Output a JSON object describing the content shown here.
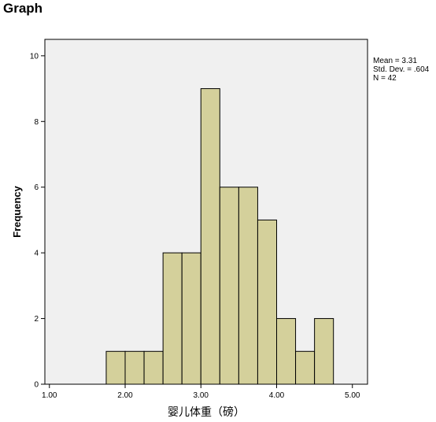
{
  "heading": "Graph",
  "chart_data": {
    "type": "bar",
    "subtype": "histogram",
    "title": "",
    "xlabel": "婴儿体重（磅）",
    "ylabel": "Frequency",
    "xlim": [
      0.94,
      5.2
    ],
    "ylim": [
      0,
      10.5
    ],
    "x_ticks": [
      1.0,
      2.0,
      3.0,
      4.0,
      5.0
    ],
    "x_tick_labels": [
      "1.00",
      "2.00",
      "3.00",
      "4.00",
      "5.00"
    ],
    "y_ticks": [
      0,
      2,
      4,
      6,
      8,
      10
    ],
    "y_tick_labels": [
      "0",
      "2",
      "4",
      "6",
      "8",
      "10"
    ],
    "bin_width": 0.25,
    "bins": [
      {
        "start": 1.75,
        "end": 2.0,
        "count": 1
      },
      {
        "start": 2.0,
        "end": 2.25,
        "count": 1
      },
      {
        "start": 2.25,
        "end": 2.5,
        "count": 1
      },
      {
        "start": 2.5,
        "end": 2.75,
        "count": 4
      },
      {
        "start": 2.75,
        "end": 3.0,
        "count": 4
      },
      {
        "start": 3.0,
        "end": 3.25,
        "count": 9
      },
      {
        "start": 3.25,
        "end": 3.5,
        "count": 6
      },
      {
        "start": 3.5,
        "end": 3.75,
        "count": 6
      },
      {
        "start": 3.75,
        "end": 4.0,
        "count": 5
      },
      {
        "start": 4.0,
        "end": 4.25,
        "count": 2
      },
      {
        "start": 4.25,
        "end": 4.5,
        "count": 1
      },
      {
        "start": 4.5,
        "end": 4.75,
        "count": 2
      }
    ],
    "stats": [
      "Mean = 3.31",
      "Std. Dev. = .604",
      "N = 42"
    ],
    "grid": false,
    "colors": {
      "bar_fill": "#d4d09b",
      "bar_stroke": "#000000",
      "plot_background": "#f0f0f0"
    }
  }
}
